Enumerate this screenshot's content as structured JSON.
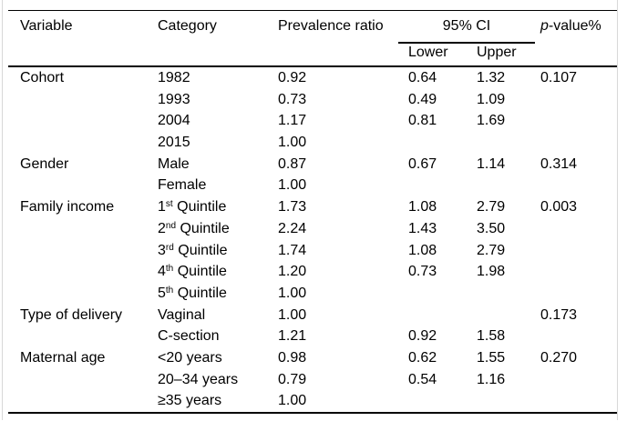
{
  "table": {
    "headers": {
      "variable": "Variable",
      "category": "Category",
      "prevalence_ratio": "Prevalence ratio",
      "ci": "95% CI",
      "ci_lower": "Lower",
      "ci_upper": "Upper",
      "p_value_prefix": "p",
      "p_value_suffix": "-value%"
    },
    "rows": [
      {
        "variable": "Cohort",
        "category": "1982",
        "pr": "0.92",
        "lower": "0.64",
        "upper": "1.32",
        "p": "0.107"
      },
      {
        "category": "1993",
        "pr": "0.73",
        "lower": "0.49",
        "upper": "1.09"
      },
      {
        "category": "2004",
        "pr": "1.17",
        "lower": "0.81",
        "upper": "1.69"
      },
      {
        "category": "2015",
        "pr": "1.00"
      },
      {
        "variable": "Gender",
        "category": "Male",
        "pr": "0.87",
        "lower": "0.67",
        "upper": "1.14",
        "p": "0.314"
      },
      {
        "category": "Female",
        "pr": "1.00"
      },
      {
        "variable": "Family income",
        "category": "1",
        "category_sup": "st",
        "category_rest": " Quintile",
        "pr": "1.73",
        "lower": "1.08",
        "upper": "2.79",
        "p": "0.003"
      },
      {
        "category": "2",
        "category_sup": "nd",
        "category_rest": " Quintile",
        "pr": "2.24",
        "lower": "1.43",
        "upper": "3.50"
      },
      {
        "category": "3",
        "category_sup": "rd",
        "category_rest": " Quintile",
        "pr": "1.74",
        "lower": "1.08",
        "upper": "2.79"
      },
      {
        "category": "4",
        "category_sup": "th",
        "category_rest": " Quintile",
        "pr": "1.20",
        "lower": "0.73",
        "upper": "1.98"
      },
      {
        "category": "5",
        "category_sup": "th",
        "category_rest": " Quintile",
        "pr": "1.00"
      },
      {
        "variable": "Type of delivery",
        "category": "Vaginal",
        "pr": "1.00",
        "p": "0.173"
      },
      {
        "category": "C-section",
        "pr": "1.21",
        "lower": "0.92",
        "upper": "1.58"
      },
      {
        "variable": "Maternal age",
        "category": "<20 years",
        "pr": "0.98",
        "lower": "0.62",
        "upper": "1.55",
        "p": "0.270"
      },
      {
        "category": "20–34 years",
        "pr": "0.79",
        "lower": "0.54",
        "upper": "1.16"
      },
      {
        "category": "≥35 years",
        "pr": "1.00"
      }
    ]
  }
}
